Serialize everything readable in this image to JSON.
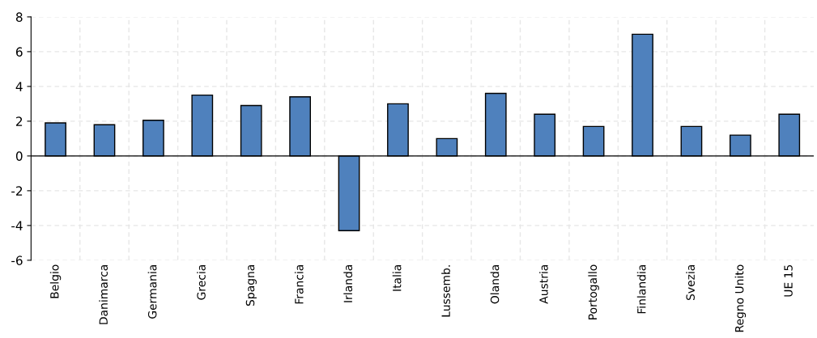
{
  "chart_data": {
    "type": "bar",
    "categories": [
      "Belgio",
      "Danimarca",
      "Germania",
      "Grecia",
      "Spagna",
      "Francia",
      "Irlanda",
      "Italia",
      "Lussemb.",
      "Olanda",
      "Austria",
      "Portogallo",
      "Finlandia",
      "Svezia",
      "Regno Unito",
      "UE 15"
    ],
    "values": [
      1.9,
      1.8,
      2.05,
      3.5,
      2.9,
      3.4,
      -4.3,
      3.0,
      1.0,
      3.6,
      2.4,
      1.7,
      7.0,
      1.7,
      1.2,
      2.4
    ],
    "color": "#4f81bd",
    "ylim": [
      -6,
      8
    ],
    "yticks": [
      -6,
      -4,
      -2,
      0,
      2,
      4,
      6,
      8
    ],
    "grid": true,
    "legend": false
  }
}
